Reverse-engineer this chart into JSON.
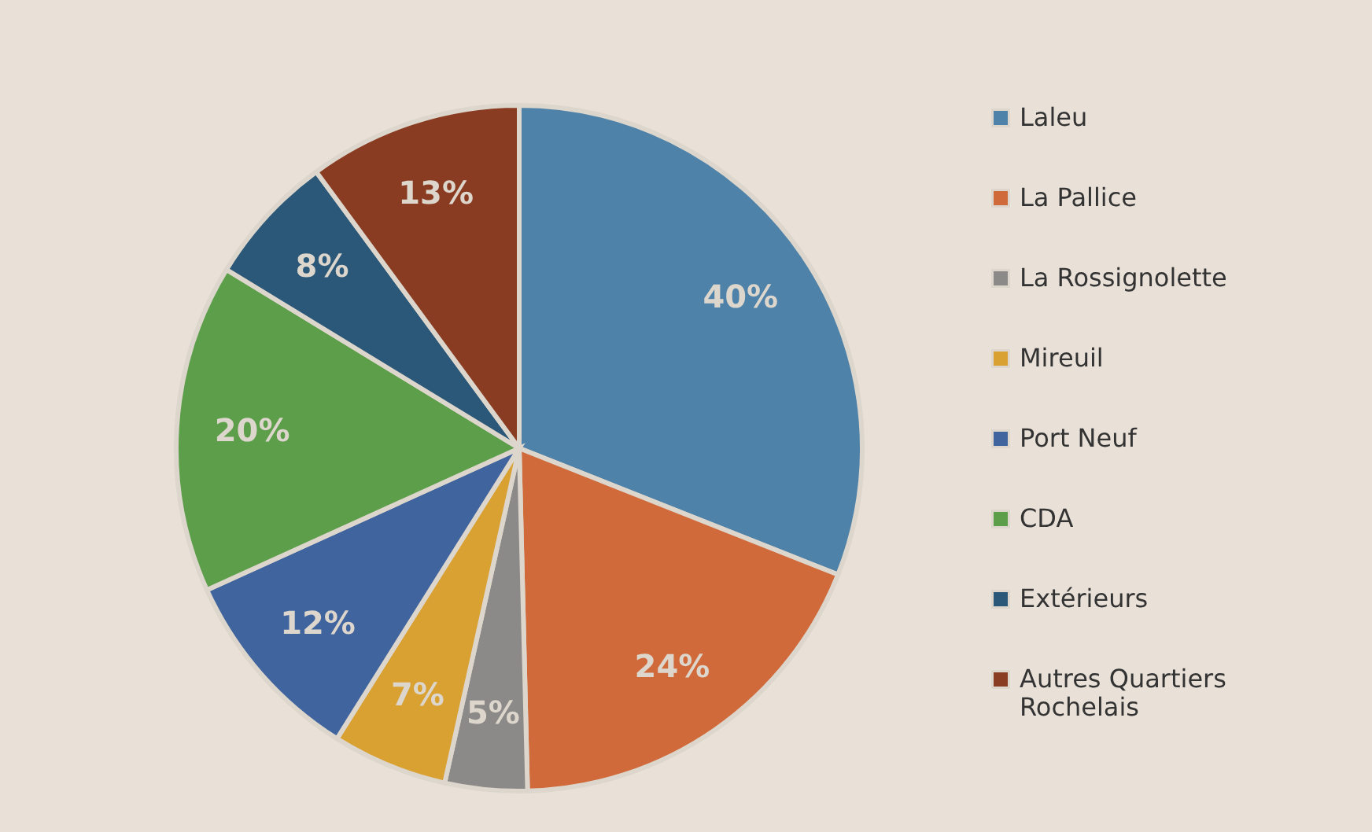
{
  "chart_data": {
    "type": "pie",
    "categories": [
      "Laleu",
      "La Pallice",
      "La Rossignolette",
      "Mireuil",
      "Port Neuf",
      "CDA",
      "Extérieurs",
      "Autres Quartiers Rochelais"
    ],
    "values": [
      40,
      24,
      5,
      7,
      12,
      20,
      8,
      13
    ],
    "colors": [
      "#4f82a8",
      "#d06a3a",
      "#8c8a88",
      "#d9a032",
      "#40649e",
      "#5c9e4a",
      "#2b5878",
      "#8a3c22"
    ],
    "value_labels": [
      "40%",
      "24%",
      "5%",
      "7%",
      "12%",
      "20%",
      "8%",
      "13%"
    ],
    "legend": "right"
  }
}
